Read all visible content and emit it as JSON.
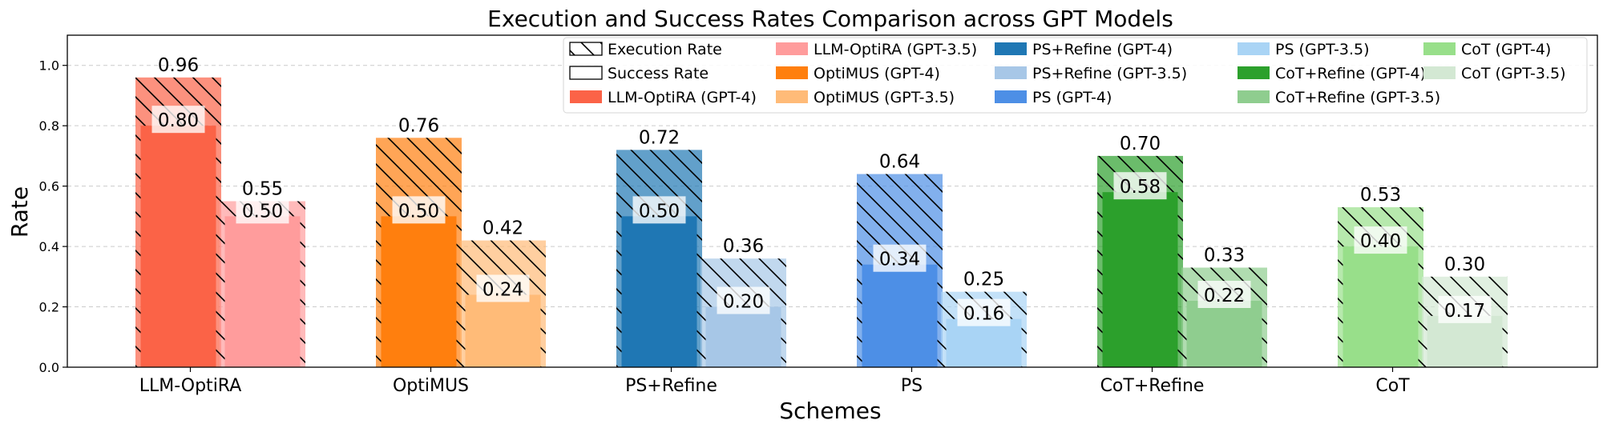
{
  "chart_data": {
    "type": "bar",
    "title": "Execution and Success Rates Comparison across GPT Models",
    "xlabel": "Schemes",
    "ylabel": "Rate",
    "ylim": [
      0,
      1.1
    ],
    "yticks": [
      "0.0",
      "0.2",
      "0.4",
      "0.6",
      "0.8",
      "1.0"
    ],
    "grid": "horizontal dashed",
    "legend_position": "top-right",
    "categories": [
      "LLM-OptiRA",
      "OptiMUS",
      "PS+Refine",
      "PS",
      "CoT+Refine",
      "CoT"
    ],
    "series": [
      {
        "name": "GPT-4",
        "execution_rate": [
          0.96,
          0.76,
          0.72,
          0.64,
          0.7,
          0.53
        ],
        "success_rate": [
          0.8,
          0.5,
          0.5,
          0.34,
          0.58,
          0.4
        ],
        "execution_labels": [
          "0.96",
          "0.76",
          "0.72",
          "0.64",
          "0.70",
          "0.53"
        ],
        "success_labels": [
          "0.80",
          "0.50",
          "0.50",
          "0.34",
          "0.58",
          "0.40"
        ]
      },
      {
        "name": "GPT-3.5",
        "execution_rate": [
          0.55,
          0.42,
          0.36,
          0.25,
          0.33,
          0.3
        ],
        "success_rate": [
          0.5,
          0.24,
          0.2,
          0.16,
          0.22,
          0.17
        ],
        "execution_labels": [
          "0.55",
          "0.42",
          "0.36",
          "0.25",
          "0.33",
          "0.30"
        ],
        "success_labels": [
          "0.50",
          "0.24",
          "0.20",
          "0.16",
          "0.22",
          "0.17"
        ]
      }
    ],
    "colors": {
      "gpt4": [
        "#fb6347",
        "#ff7f0e",
        "#1f77b4",
        "#4d8fe6",
        "#2ca02c",
        "#98df8a"
      ],
      "gpt35": [
        "#ff9c9c",
        "#ffbb78",
        "#a7c7e7",
        "#a9d4f5",
        "#8fcd8f",
        "#d3e8d3"
      ]
    },
    "legend": [
      {
        "label": "Execution Rate",
        "kind": "hatch"
      },
      {
        "label": "Success Rate",
        "kind": "outline"
      },
      {
        "label": "LLM-OptiRA (GPT-4)",
        "color": "#fb6347"
      },
      {
        "label": "LLM-OptiRA (GPT-3.5)",
        "color": "#ff9c9c"
      },
      {
        "label": "OptiMUS (GPT-4)",
        "color": "#ff7f0e"
      },
      {
        "label": "OptiMUS (GPT-3.5)",
        "color": "#ffbb78"
      },
      {
        "label": "PS+Refine (GPT-4)",
        "color": "#1f77b4"
      },
      {
        "label": "PS+Refine (GPT-3.5)",
        "color": "#a7c7e7"
      },
      {
        "label": "PS (GPT-4)",
        "color": "#4d8fe6"
      },
      {
        "label": "PS (GPT-3.5)",
        "color": "#a9d4f5"
      },
      {
        "label": "CoT+Refine (GPT-4)",
        "color": "#2ca02c"
      },
      {
        "label": "CoT+Refine (GPT-3.5)",
        "color": "#8fcd8f"
      },
      {
        "label": "CoT (GPT-4)",
        "color": "#98df8a"
      },
      {
        "label": "CoT (GPT-3.5)",
        "color": "#d3e8d3"
      }
    ]
  }
}
